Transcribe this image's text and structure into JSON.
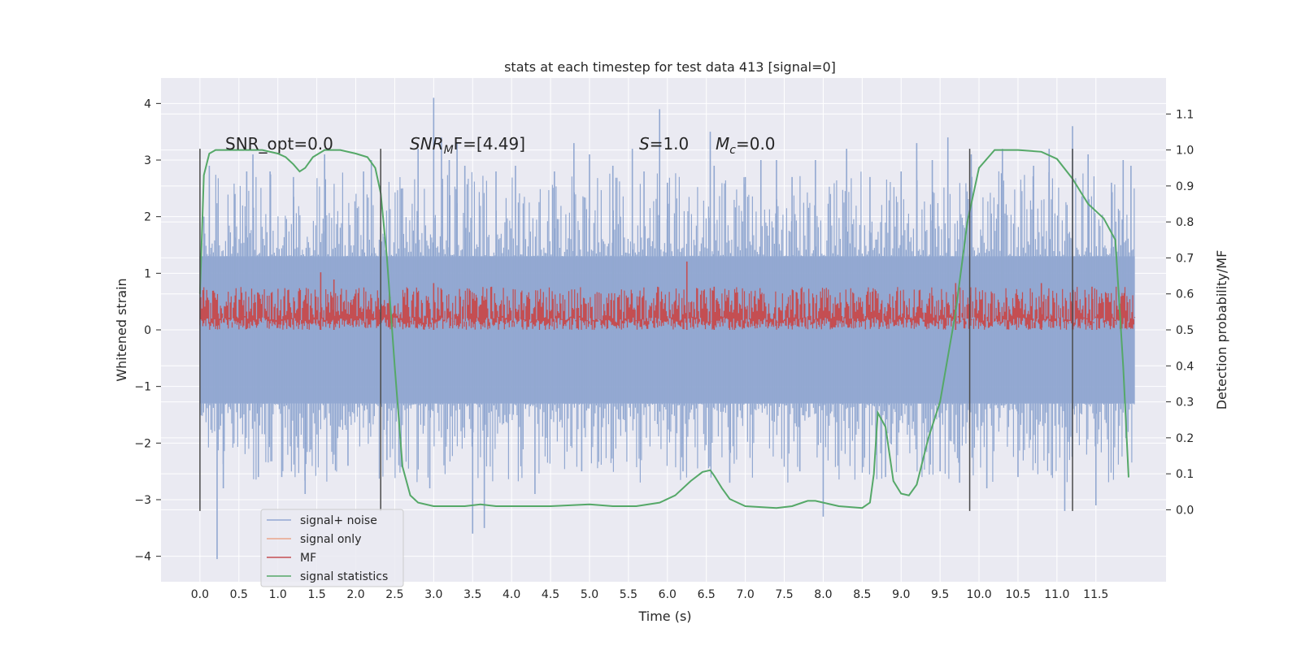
{
  "chart_data": {
    "type": "line",
    "title": "stats at each timestep for test data 413 [signal=0]",
    "xlabel": "Time (s)",
    "ylabel_left": "Whitened strain",
    "ylabel_right": "Detection probability/MF",
    "xlim": [
      -0.5,
      12.4
    ],
    "ylim_left": [
      -4.45,
      4.45
    ],
    "ylim_right": [
      -0.2,
      1.2
    ],
    "grid": true,
    "x_ticks": [
      "0.0",
      "0.5",
      "1.0",
      "1.5",
      "2.0",
      "2.5",
      "3.0",
      "3.5",
      "4.0",
      "4.5",
      "5.0",
      "5.5",
      "6.0",
      "6.5",
      "7.0",
      "7.5",
      "8.0",
      "8.5",
      "9.0",
      "9.5",
      "10.0",
      "10.5",
      "11.0",
      "11.5"
    ],
    "y_left_ticks": [
      "4",
      "3",
      "2",
      "1",
      "0",
      "−1",
      "−2",
      "−3",
      "−4"
    ],
    "y_right_ticks": [
      "1.1",
      "1.0",
      "0.9",
      "0.8",
      "0.7",
      "0.6",
      "0.5",
      "0.4",
      "0.3",
      "0.2",
      "0.1",
      "0.0"
    ],
    "annotations": {
      "snr_opt": "SNR_opt=0.0",
      "snr_mf_main": "SNR",
      "snr_mf_sub": "M",
      "snr_mf_rest": "F=[4.49]",
      "s_var": "S",
      "s_rest": "=1.0",
      "mc_var": "M",
      "mc_sub": "c",
      "mc_rest": "=0.0"
    },
    "vertical_lines_x": [
      0.0,
      2.32,
      9.88,
      11.2
    ],
    "vertical_lines_y": [
      -3.2,
      3.2
    ],
    "legend": {
      "placement": "lower-left",
      "entries": [
        {
          "label": "signal+ noise",
          "color": "#92a8d1"
        },
        {
          "label": "signal only",
          "color": "#eaa58a"
        },
        {
          "label": "MF",
          "color": "#c44e52"
        },
        {
          "label": "signal statistics",
          "color": "#55a868"
        }
      ]
    },
    "series": [
      {
        "name": "signal+ noise",
        "axis": "left",
        "color": "#92a8d1",
        "x_range": [
          0.0,
          12.0
        ],
        "band": [
          -1.3,
          1.3
        ],
        "spikes": [
          {
            "x": 0.05,
            "y": 2.0
          },
          {
            "x": 0.12,
            "y": 2.9
          },
          {
            "x": 0.3,
            "y": -2.8
          },
          {
            "x": 0.45,
            "y": 2.4
          },
          {
            "x": 0.6,
            "y": 2.8
          },
          {
            "x": 0.68,
            "y": 3.1
          },
          {
            "x": 0.75,
            "y": -2.6
          },
          {
            "x": 0.9,
            "y": 2.8
          },
          {
            "x": 1.2,
            "y": 2.7
          },
          {
            "x": 1.35,
            "y": -2.9
          },
          {
            "x": 1.6,
            "y": 3.1
          },
          {
            "x": 1.9,
            "y": -2.4
          },
          {
            "x": 2.1,
            "y": 2.8
          },
          {
            "x": 2.2,
            "y": 3.0
          },
          {
            "x": 2.6,
            "y": 2.5
          },
          {
            "x": 2.8,
            "y": 3.2
          },
          {
            "x": 2.95,
            "y": -2.8
          },
          {
            "x": 3.0,
            "y": 4.1
          },
          {
            "x": 3.1,
            "y": 3.4
          },
          {
            "x": 3.2,
            "y": 3.0
          },
          {
            "x": 3.3,
            "y": 3.3
          },
          {
            "x": 3.4,
            "y": 2.9
          },
          {
            "x": 3.5,
            "y": -3.6
          },
          {
            "x": 3.65,
            "y": -3.5
          },
          {
            "x": 3.8,
            "y": 2.8
          },
          {
            "x": 4.05,
            "y": 2.9
          },
          {
            "x": 4.3,
            "y": -2.9
          },
          {
            "x": 4.55,
            "y": 2.8
          },
          {
            "x": 4.8,
            "y": 3.3
          },
          {
            "x": 5.0,
            "y": 3.1
          },
          {
            "x": 5.3,
            "y": 2.9
          },
          {
            "x": 5.55,
            "y": 3.2
          },
          {
            "x": 5.7,
            "y": 2.8
          },
          {
            "x": 5.9,
            "y": 3.9
          },
          {
            "x": 6.0,
            "y": 2.6
          },
          {
            "x": 6.2,
            "y": -2.5
          },
          {
            "x": 6.55,
            "y": 3.5
          },
          {
            "x": 6.6,
            "y": 2.9
          },
          {
            "x": 6.8,
            "y": -2.7
          },
          {
            "x": 7.0,
            "y": 2.7
          },
          {
            "x": 7.2,
            "y": 3.0
          },
          {
            "x": 7.4,
            "y": 3.0
          },
          {
            "x": 7.6,
            "y": 2.7
          },
          {
            "x": 7.9,
            "y": 3.0
          },
          {
            "x": 8.3,
            "y": 3.2
          },
          {
            "x": 8.6,
            "y": 2.7
          },
          {
            "x": 8.8,
            "y": -2.6
          },
          {
            "x": 9.0,
            "y": 2.8
          },
          {
            "x": 9.2,
            "y": 3.3
          },
          {
            "x": 9.4,
            "y": 3.0
          },
          {
            "x": 9.6,
            "y": 3.4
          },
          {
            "x": 9.75,
            "y": -2.7
          },
          {
            "x": 9.9,
            "y": 3.1
          },
          {
            "x": 10.1,
            "y": -2.8
          },
          {
            "x": 10.3,
            "y": 3.2
          },
          {
            "x": 10.7,
            "y": 2.9
          },
          {
            "x": 10.9,
            "y": 3.2
          },
          {
            "x": 11.1,
            "y": -3.2
          },
          {
            "x": 11.2,
            "y": 3.6
          },
          {
            "x": 11.4,
            "y": 3.1
          },
          {
            "x": 11.5,
            "y": -3.1
          },
          {
            "x": 11.7,
            "y": 2.6
          },
          {
            "x": 11.85,
            "y": 3.0
          },
          {
            "x": 11.95,
            "y": 2.9
          },
          {
            "x": 0.22,
            "y": -4.05
          },
          {
            "x": 1.05,
            "y": -2.6
          },
          {
            "x": 2.4,
            "y": -2.3
          },
          {
            "x": 4.9,
            "y": -2.5
          },
          {
            "x": 7.7,
            "y": -2.5
          },
          {
            "x": 8.0,
            "y": -3.3
          },
          {
            "x": 9.5,
            "y": -2.5
          },
          {
            "x": 10.5,
            "y": -2.6
          }
        ]
      },
      {
        "name": "signal only",
        "axis": "right",
        "color": "#eaa58a",
        "x": [],
        "y": []
      },
      {
        "name": "MF",
        "axis": "right",
        "color": "#c44e52",
        "x_range": [
          0.0,
          12.0
        ],
        "baseline": 0.5,
        "typical_max": 0.62,
        "peaks": [
          {
            "x": 1.55,
            "y": 0.66
          },
          {
            "x": 1.72,
            "y": 0.64
          },
          {
            "x": 3.0,
            "y": 0.63
          },
          {
            "x": 6.25,
            "y": 0.69
          },
          {
            "x": 6.6,
            "y": 0.62
          },
          {
            "x": 9.7,
            "y": 0.63
          },
          {
            "x": 10.8,
            "y": 0.63
          },
          {
            "x": 11.45,
            "y": 0.62
          }
        ]
      },
      {
        "name": "signal statistics",
        "axis": "right",
        "color": "#55a868",
        "x": [
          0.0,
          0.05,
          0.12,
          0.2,
          0.4,
          0.8,
          1.0,
          1.1,
          1.2,
          1.28,
          1.35,
          1.45,
          1.6,
          1.8,
          2.0,
          2.15,
          2.25,
          2.32,
          2.4,
          2.5,
          2.6,
          2.7,
          2.8,
          3.0,
          3.2,
          3.4,
          3.6,
          3.8,
          4.0,
          4.5,
          5.0,
          5.3,
          5.6,
          5.9,
          6.1,
          6.3,
          6.45,
          6.55,
          6.6,
          6.7,
          6.8,
          7.0,
          7.4,
          7.6,
          7.8,
          7.9,
          8.0,
          8.2,
          8.5,
          8.6,
          8.65,
          8.7,
          8.8,
          8.9,
          9.0,
          9.1,
          9.2,
          9.35,
          9.5,
          9.7,
          9.85,
          10.0,
          10.2,
          10.5,
          10.8,
          11.0,
          11.2,
          11.4,
          11.6,
          11.75,
          11.85,
          11.92
        ],
        "y": [
          0.6,
          0.93,
          0.99,
          1.0,
          1.0,
          1.0,
          0.99,
          0.98,
          0.96,
          0.94,
          0.95,
          0.98,
          1.0,
          1.0,
          0.99,
          0.98,
          0.95,
          0.88,
          0.7,
          0.4,
          0.12,
          0.04,
          0.02,
          0.01,
          0.01,
          0.01,
          0.015,
          0.01,
          0.01,
          0.01,
          0.015,
          0.01,
          0.01,
          0.02,
          0.04,
          0.08,
          0.105,
          0.11,
          0.095,
          0.06,
          0.03,
          0.01,
          0.005,
          0.01,
          0.025,
          0.025,
          0.02,
          0.01,
          0.005,
          0.02,
          0.1,
          0.27,
          0.23,
          0.08,
          0.045,
          0.04,
          0.07,
          0.2,
          0.3,
          0.55,
          0.8,
          0.95,
          1.0,
          1.0,
          0.995,
          0.975,
          0.92,
          0.85,
          0.81,
          0.75,
          0.4,
          0.09
        ]
      }
    ]
  }
}
